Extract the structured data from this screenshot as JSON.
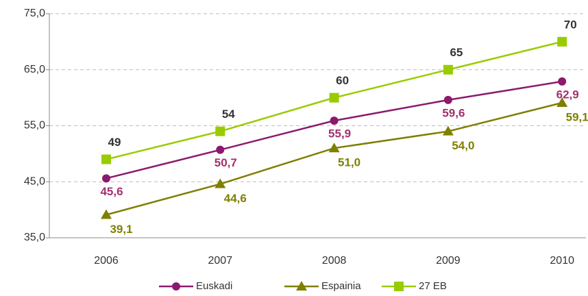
{
  "chart_data": {
    "type": "line",
    "categories": [
      "2006",
      "2007",
      "2008",
      "2009",
      "2010"
    ],
    "series": [
      {
        "name": "Euskadi",
        "color": "#8b1a6e",
        "label_color": "#a2306f",
        "marker": "circle",
        "values": [
          45.6,
          50.7,
          55.9,
          59.6,
          62.9
        ],
        "value_labels": [
          "45,6",
          "50,7",
          "55,9",
          "59,6",
          "62,9"
        ]
      },
      {
        "name": "Espainia",
        "color": "#7f7f00",
        "label_color": "#7f7f00",
        "marker": "triangle",
        "values": [
          39.1,
          44.6,
          51.0,
          54.0,
          59.1
        ],
        "value_labels": [
          "39,1",
          "44,6",
          "51,0",
          "54,0",
          "59,1"
        ]
      },
      {
        "name": "27 EB",
        "color": "#99cc00",
        "label_color": "#333333",
        "marker": "square",
        "values": [
          49,
          54,
          60,
          65,
          70
        ]
      }
    ],
    "ylim": [
      35,
      75
    ],
    "yticks": [
      {
        "value": 35,
        "label": "35,0"
      },
      {
        "value": 45,
        "label": "45,0"
      },
      {
        "value": 55,
        "label": "55,0"
      },
      {
        "value": 65,
        "label": "65,0"
      },
      {
        "value": 75,
        "label": "75,0"
      }
    ],
    "grid": true,
    "legend": "bottom"
  }
}
